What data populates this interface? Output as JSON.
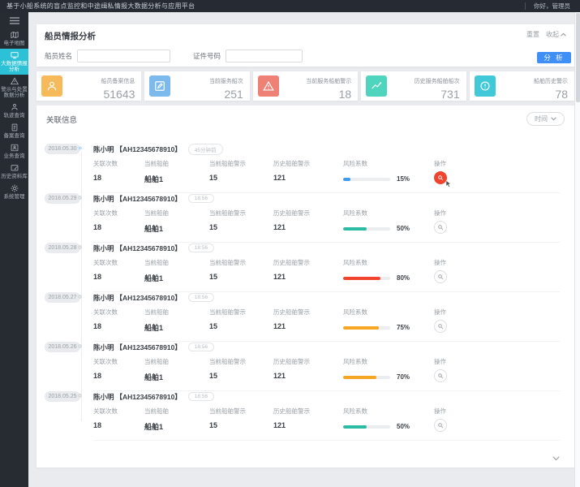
{
  "topbar": {
    "title": "基于小船系统的盲点监控和中途缉私情报大数据分析与应用平台",
    "greeting": "你好，管理员"
  },
  "sidebar": {
    "items": [
      {
        "label": "电子地图",
        "icon": "map-icon"
      },
      {
        "label": "大数据情报分析",
        "icon": "monitor-icon",
        "active": true
      },
      {
        "label": "警示与处置数据分析",
        "icon": "alert-triangle-icon"
      },
      {
        "label": "轨迹查询",
        "icon": "person-icon"
      },
      {
        "label": "备案查询",
        "icon": "document-icon"
      },
      {
        "label": "业务查询",
        "icon": "person-card-icon"
      },
      {
        "label": "历史资料库",
        "icon": "archive-icon"
      },
      {
        "label": "系统管理",
        "icon": "gear-icon"
      }
    ]
  },
  "search_panel": {
    "title": "船员情报分析",
    "reset": "重置",
    "collapse": "收起",
    "name_label": "船员姓名",
    "name_value": "",
    "id_label": "证件号码",
    "id_value": "",
    "analyze": "分 析"
  },
  "stats_cards": [
    {
      "label": "船员备案信息",
      "value": "51643",
      "color": "#f7ba5a",
      "icon": "user-icon"
    },
    {
      "label": "当前服务船次",
      "value": "251",
      "color": "#7cb9ec",
      "icon": "edit-icon"
    },
    {
      "label": "当前服务船舶警示",
      "value": "18",
      "color": "#ef8076",
      "icon": "warning-triangle-icon"
    },
    {
      "label": "历史服务船舶船次",
      "value": "731",
      "color": "#4fd5bd",
      "icon": "trend-icon"
    },
    {
      "label": "船舶历史警示",
      "value": "78",
      "color": "#41c8d9",
      "icon": "alert-circle-icon"
    }
  ],
  "related_panel": {
    "title": "关联信息",
    "time_filter": "时间",
    "entries": [
      {
        "date": "2018.05.30",
        "name": "陈小明",
        "id": "【AH12345678910】",
        "time_badge": "45分钟前",
        "active": true,
        "stats": [
          {
            "label": "关联次数",
            "value": "18"
          },
          {
            "label": "当前船舶",
            "value": "船舶1"
          },
          {
            "label": "当前船舶警示",
            "value": "15"
          },
          {
            "label": "历史船舶警示",
            "value": "121"
          }
        ],
        "risk": {
          "label": "风险系数",
          "percent": 15,
          "percent_label": "15%",
          "color": "#3d9bf0"
        },
        "action_label": "操作"
      },
      {
        "date": "2018.05.29",
        "name": "陈小明",
        "id": "【AH12345678910】",
        "time_badge": "18:56",
        "active": false,
        "stats": [
          {
            "label": "关联次数",
            "value": "18"
          },
          {
            "label": "当前船舶",
            "value": "船舶1"
          },
          {
            "label": "当前船舶警示",
            "value": "15"
          },
          {
            "label": "历史船舶警示",
            "value": "121"
          }
        ],
        "risk": {
          "label": "风险系数",
          "percent": 50,
          "percent_label": "50%",
          "color": "#2cbca3"
        },
        "action_label": "操作"
      },
      {
        "date": "2018.05.28",
        "name": "陈小明",
        "id": "【AH12345678910】",
        "time_badge": "18:56",
        "active": false,
        "stats": [
          {
            "label": "关联次数",
            "value": "18"
          },
          {
            "label": "当前船舶",
            "value": "船舶1"
          },
          {
            "label": "当前船舶警示",
            "value": "15"
          },
          {
            "label": "历史船舶警示",
            "value": "121"
          }
        ],
        "risk": {
          "label": "风险系数",
          "percent": 80,
          "percent_label": "80%",
          "color": "#f0442e"
        },
        "action_label": "操作"
      },
      {
        "date": "2018.05.27",
        "name": "陈小明",
        "id": "【AH12345678910】",
        "time_badge": "18:56",
        "active": false,
        "stats": [
          {
            "label": "关联次数",
            "value": "18"
          },
          {
            "label": "当前船舶",
            "value": "船舶1"
          },
          {
            "label": "当前船舶警示",
            "value": "15"
          },
          {
            "label": "历史船舶警示",
            "value": "121"
          }
        ],
        "risk": {
          "label": "风险系数",
          "percent": 75,
          "percent_label": "75%",
          "color": "#f6a623"
        },
        "action_label": "操作"
      },
      {
        "date": "2018.05.26",
        "name": "陈小明",
        "id": "【AH12345678910】",
        "time_badge": "18:56",
        "active": false,
        "stats": [
          {
            "label": "关联次数",
            "value": "18"
          },
          {
            "label": "当前船舶",
            "value": "船舶1"
          },
          {
            "label": "当前船舶警示",
            "value": "15"
          },
          {
            "label": "历史船舶警示",
            "value": "121"
          }
        ],
        "risk": {
          "label": "风险系数",
          "percent": 70,
          "percent_label": "70%",
          "color": "#f6a623"
        },
        "action_label": "操作"
      },
      {
        "date": "2018.05.25",
        "name": "陈小明",
        "id": "【AH12345678910】",
        "time_badge": "18:56",
        "active": false,
        "stats": [
          {
            "label": "关联次数",
            "value": "18"
          },
          {
            "label": "当前船舶",
            "value": "船舶1"
          },
          {
            "label": "当前船舶警示",
            "value": "15"
          },
          {
            "label": "历史船舶警示",
            "value": "121"
          }
        ],
        "risk": {
          "label": "风险系数",
          "percent": 50,
          "percent_label": "50%",
          "color": "#2cbca3"
        },
        "action_label": "操作"
      }
    ]
  }
}
